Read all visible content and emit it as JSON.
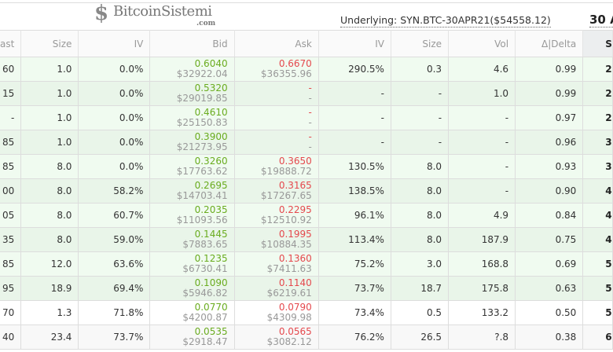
{
  "header": {
    "underlying": "Underlying: SYN.BTC-30APR21($54558.12)",
    "expiry": "30 A"
  },
  "columns": [
    "ast",
    "Size",
    "IV",
    "Bid",
    "Ask",
    "IV",
    "Size",
    "Vol",
    "Δ|Delta",
    "S"
  ],
  "rows": [
    {
      "last": "60",
      "size": "1.0",
      "iv": "0.0%",
      "bid": "0.6040",
      "bid_usd": "$32922.04",
      "ask": "0.6670",
      "ask_usd": "$36355.96",
      "ask_iv": "290.5%",
      "ask_size": "0.3",
      "vol": "4.6",
      "delta": "0.99",
      "strike": "2",
      "bg": "itm0"
    },
    {
      "last": "15",
      "size": "1.0",
      "iv": "0.0%",
      "bid": "0.5320",
      "bid_usd": "$29019.85",
      "ask": "-",
      "ask_usd": "-",
      "ask_iv": "-",
      "ask_size": "-",
      "vol": "1.0",
      "delta": "0.99",
      "strike": "2",
      "bg": "itm1"
    },
    {
      "last": "-",
      "size": "1.0",
      "iv": "0.0%",
      "bid": "0.4610",
      "bid_usd": "$25150.83",
      "ask": "-",
      "ask_usd": "-",
      "ask_iv": "-",
      "ask_size": "-",
      "vol": "-",
      "delta": "0.97",
      "strike": "2",
      "bg": "itm0"
    },
    {
      "last": "85",
      "size": "1.0",
      "iv": "0.0%",
      "bid": "0.3900",
      "bid_usd": "$21273.95",
      "ask": "-",
      "ask_usd": "-",
      "ask_iv": "-",
      "ask_size": "-",
      "vol": "-",
      "delta": "0.96",
      "strike": "3",
      "bg": "itm1"
    },
    {
      "last": "85",
      "size": "8.0",
      "iv": "0.0%",
      "bid": "0.3260",
      "bid_usd": "$17763.62",
      "ask": "0.3650",
      "ask_usd": "$19888.72",
      "ask_iv": "130.5%",
      "ask_size": "8.0",
      "vol": "-",
      "delta": "0.93",
      "strike": "3",
      "bg": "itm0"
    },
    {
      "last": "00",
      "size": "8.0",
      "iv": "58.2%",
      "bid": "0.2695",
      "bid_usd": "$14703.41",
      "ask": "0.3165",
      "ask_usd": "$17267.65",
      "ask_iv": "138.5%",
      "ask_size": "8.0",
      "vol": "-",
      "delta": "0.90",
      "strike": "4",
      "bg": "itm1"
    },
    {
      "last": "05",
      "size": "8.0",
      "iv": "60.7%",
      "bid": "0.2035",
      "bid_usd": "$11093.56",
      "ask": "0.2295",
      "ask_usd": "$12510.92",
      "ask_iv": "96.1%",
      "ask_size": "8.0",
      "vol": "4.9",
      "delta": "0.84",
      "strike": "4",
      "bg": "itm0"
    },
    {
      "last": "35",
      "size": "8.0",
      "iv": "59.0%",
      "bid": "0.1445",
      "bid_usd": "$7883.65",
      "ask": "0.1995",
      "ask_usd": "$10884.35",
      "ask_iv": "113.4%",
      "ask_size": "8.0",
      "vol": "187.9",
      "delta": "0.75",
      "strike": "4",
      "bg": "itm1"
    },
    {
      "last": "85",
      "size": "12.0",
      "iv": "63.6%",
      "bid": "0.1235",
      "bid_usd": "$6730.41",
      "ask": "0.1360",
      "ask_usd": "$7411.63",
      "ask_iv": "75.2%",
      "ask_size": "3.0",
      "vol": "168.8",
      "delta": "0.69",
      "strike": "5",
      "bg": "itm0"
    },
    {
      "last": "95",
      "size": "18.9",
      "iv": "69.4%",
      "bid": "0.1090",
      "bid_usd": "$5946.82",
      "ask": "0.1140",
      "ask_usd": "$6219.61",
      "ask_iv": "73.7%",
      "ask_size": "18.7",
      "vol": "175.8",
      "delta": "0.63",
      "strike": "5",
      "bg": "itm1"
    },
    {
      "last": "70",
      "size": "1.3",
      "iv": "71.8%",
      "bid": "0.0770",
      "bid_usd": "$4200.87",
      "ask": "0.0790",
      "ask_usd": "$4309.98",
      "ask_iv": "73.4%",
      "ask_size": "0.5",
      "vol": "133.2",
      "delta": "0.50",
      "strike": "5",
      "bg": "otm0"
    },
    {
      "last": "40",
      "size": "23.4",
      "iv": "73.7%",
      "bid": "0.0535",
      "bid_usd": "$2918.47",
      "ask": "0.0565",
      "ask_usd": "$3082.12",
      "ask_iv": "76.2%",
      "ask_size": "26.5",
      "vol": "?.8",
      "delta": "0.38",
      "strike": "6",
      "bg": "otm1"
    }
  ],
  "watermark": {
    "brand": "BitcoinSistemi",
    "suffix": ".com"
  }
}
